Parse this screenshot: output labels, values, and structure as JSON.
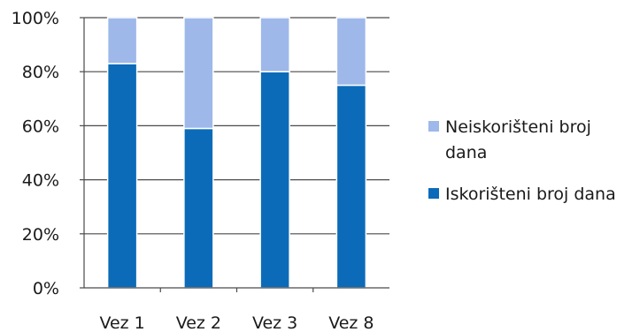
{
  "chart_data": {
    "type": "bar",
    "stacked": true,
    "percent": true,
    "categories": [
      "Vez 1",
      "Vez 2",
      "Vez 3",
      "Vez 8"
    ],
    "series": [
      {
        "name": "Iskorišteni broj dana",
        "color": "#0b6bb8",
        "values": [
          83,
          59,
          80,
          75
        ]
      },
      {
        "name": "Neiskorišteni broj dana",
        "color": "#9eb8ea",
        "values": [
          17,
          41,
          20,
          25
        ]
      }
    ],
    "legend_order": [
      1,
      0
    ],
    "legend_lines": [
      [
        "Neiskorišteni broj",
        "dana"
      ],
      [
        "Iskorišteni broj dana"
      ]
    ],
    "y_ticks": [
      "0%",
      "20%",
      "40%",
      "60%",
      "80%",
      "100%"
    ],
    "ylim": [
      0,
      100
    ],
    "grid": true,
    "legend_position": "right",
    "title": "",
    "xlabel": "",
    "ylabel": ""
  }
}
